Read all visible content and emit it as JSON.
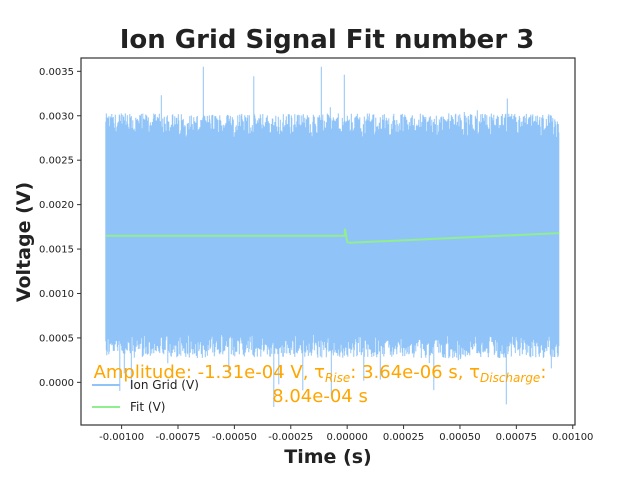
{
  "chart_data": {
    "type": "line",
    "title": "Ion Grid Signal Fit number 3",
    "xlabel": "Time (s)",
    "ylabel": "Voltage (V)",
    "xlim": [
      -0.00118,
      0.00101
    ],
    "ylim": [
      -0.00048,
      0.00365
    ],
    "grid": false,
    "legend_position": "lower-left",
    "x_ticks": [
      -0.001,
      -0.00075,
      -0.0005,
      -0.00025,
      0.0,
      0.00025,
      0.0005,
      0.00075,
      0.001
    ],
    "x_tick_labels": [
      "-0.00100",
      "-0.00075",
      "-0.00050",
      "-0.00025",
      "0.00000",
      "0.00025",
      "0.00050",
      "0.00075",
      "0.00100"
    ],
    "y_ticks": [
      0.0,
      0.0005,
      0.001,
      0.0015,
      0.002,
      0.0025,
      0.003,
      0.0035
    ],
    "y_tick_labels": [
      "0.0000",
      "0.0005",
      "0.0010",
      "0.0015",
      "0.0020",
      "0.0025",
      "0.0030",
      "0.0035"
    ],
    "series": [
      {
        "name": "Ion Grid (V)",
        "color": "#90C4F9",
        "x_range": [
          -0.00107,
          0.00094
        ],
        "band_low": 0.0003,
        "band_high": 0.003,
        "max_spike": 0.00357,
        "min_spike": -0.00032
      },
      {
        "name": "Fit (V)",
        "color": "#90EE90",
        "x": [
          -0.00107,
          -1e-05,
          -1e-05,
          0.0,
          1e-05,
          0.00094
        ],
        "y": [
          0.00165,
          0.00165,
          0.00173,
          0.00158,
          0.00157,
          0.00168
        ]
      }
    ],
    "annotation": {
      "color": "#FFA500",
      "line1": "Amplitude: -1.31e-04 V, τ",
      "sub1": "Rise",
      "mid1": ": 3.64e-06 s, τ",
      "sub2": "Discharge",
      "tail1": ":",
      "line2": "8.04e-04 s"
    }
  }
}
